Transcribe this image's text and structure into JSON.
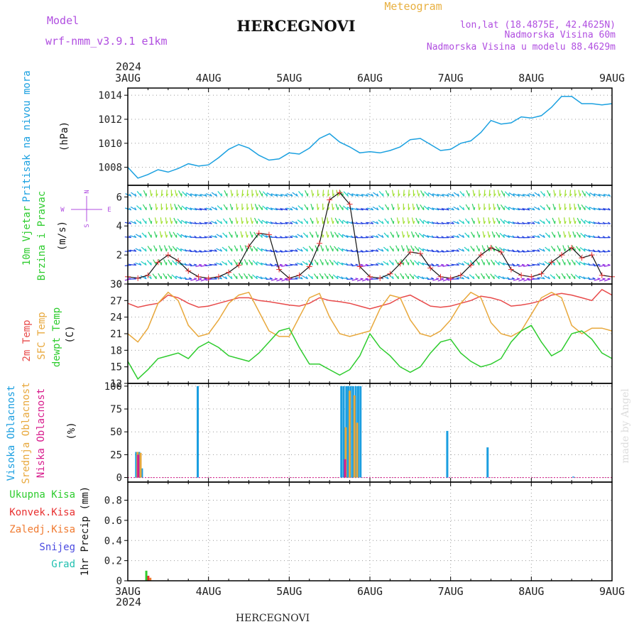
{
  "header": {
    "model_label": "Model",
    "model_name": "wrf-nmm_v3.9.1  e1km",
    "title": "HERCEGNOVI",
    "meteogram": "Meteogram",
    "lonlat": "lon,lat (18.4875E, 42.4625N)",
    "elevation": "Nadmorska Visina 60m",
    "model_elevation": "Nadmorska Visina u modelu 88.4629m",
    "footer_title": "HERCEGNOVI",
    "credit": "made by Angel"
  },
  "colors": {
    "pressure": "#1aa0e0",
    "temp2m": "#e84a4a",
    "sfc": "#e8a83c",
    "dew": "#2ecc2e",
    "high_cloud": "#1a9ee0",
    "mid_cloud": "#e8a83c",
    "low_cloud": "#d81b8c",
    "total_precip": "#2ecc2e",
    "conv_precip": "#e83030",
    "frz_precip": "#f07a30",
    "snow": "#4a4ae0",
    "hail": "#20c0b0",
    "wind_label": "#2ecc2e",
    "wind_compass": "#b04ee0",
    "model": "#b04ee0",
    "meteogram": "#e8b040"
  },
  "chart_data": {
    "x_axis": {
      "year_top": "2024",
      "year_bottom": "2024",
      "ticks": [
        "3AUG",
        "4AUG",
        "5AUG",
        "6AUG",
        "7AUG",
        "8AUG",
        "9AUG"
      ],
      "range_hours": [
        0,
        144
      ]
    },
    "panels": [
      {
        "id": "pressure",
        "type": "line",
        "ylabel": [
          "Pritisak na nivou mora",
          "(hPa)"
        ],
        "ylim": [
          1006.5,
          1014.6
        ],
        "yticks": [
          "1008",
          "1010",
          "1012",
          "1014"
        ],
        "ytick_values": [
          1008,
          1010,
          1012,
          1014
        ],
        "series": [
          {
            "name": "Pritisak na nivou mora",
            "x": [
              0,
              3,
              6,
              9,
              12,
              15,
              18,
              21,
              24,
              27,
              30,
              33,
              36,
              39,
              42,
              45,
              48,
              51,
              54,
              57,
              60,
              63,
              66,
              69,
              72,
              75,
              78,
              81,
              84,
              87,
              90,
              93,
              96,
              99,
              102,
              105,
              108,
              111,
              114,
              117,
              120,
              123,
              126,
              129,
              132,
              135,
              138,
              141,
              144
            ],
            "y": [
              1008.0,
              1007.1,
              1007.4,
              1007.8,
              1007.6,
              1007.9,
              1008.3,
              1008.1,
              1008.2,
              1008.8,
              1009.5,
              1009.9,
              1009.6,
              1009.0,
              1008.6,
              1008.7,
              1009.2,
              1009.1,
              1009.6,
              1010.4,
              1010.8,
              1010.1,
              1009.7,
              1009.2,
              1009.3,
              1009.2,
              1009.4,
              1009.7,
              1010.3,
              1010.4,
              1009.9,
              1009.4,
              1009.5,
              1010.0,
              1010.2,
              1010.9,
              1011.9,
              1011.6,
              1011.7,
              1012.2,
              1012.1,
              1012.3,
              1013.0,
              1013.9,
              1013.9,
              1013.3,
              1013.3,
              1013.2,
              1013.3
            ]
          }
        ]
      },
      {
        "id": "wind",
        "type": "line",
        "ylabel": [
          "10m Vjetar",
          "Brzina i Pravac",
          "(m/s)"
        ],
        "compass": {
          "n": "N",
          "s": "S",
          "w": "W",
          "e": "E"
        },
        "ylim": [
          0,
          6.8
        ],
        "yticks": [
          "0",
          "2",
          "4",
          "6"
        ],
        "ytick_values": [
          0,
          2,
          4,
          6
        ],
        "series": [
          {
            "name": "Brzina",
            "x": [
              0,
              3,
              6,
              9,
              12,
              15,
              18,
              21,
              24,
              27,
              30,
              33,
              36,
              39,
              42,
              45,
              48,
              51,
              54,
              57,
              60,
              63,
              66,
              69,
              72,
              75,
              78,
              81,
              84,
              87,
              90,
              93,
              96,
              99,
              102,
              105,
              108,
              111,
              114,
              117,
              120,
              123,
              126,
              129,
              132,
              135,
              138,
              141,
              144
            ],
            "y": [
              0.5,
              0.4,
              0.6,
              1.5,
              2.0,
              1.6,
              0.9,
              0.5,
              0.4,
              0.5,
              0.8,
              1.3,
              2.6,
              3.5,
              3.4,
              1.0,
              0.4,
              0.6,
              1.2,
              2.8,
              5.8,
              6.3,
              5.5,
              1.2,
              0.5,
              0.4,
              0.7,
              1.4,
              2.2,
              2.1,
              1.1,
              0.5,
              0.4,
              0.6,
              1.3,
              2.0,
              2.5,
              2.2,
              1.0,
              0.6,
              0.5,
              0.7,
              1.5,
              2.0,
              2.5,
              1.8,
              2.0,
              0.6,
              0.5
            ]
          }
        ]
      },
      {
        "id": "temperature",
        "type": "line",
        "ylabel": [
          "2m Temp",
          "SFC Temp",
          "dewpt Temp",
          "(C)"
        ],
        "ylim": [
          12,
          30
        ],
        "yticks": [
          "12",
          "15",
          "18",
          "21",
          "24",
          "27",
          "30"
        ],
        "ytick_values": [
          12,
          15,
          18,
          21,
          24,
          27,
          30
        ],
        "series": [
          {
            "name": "2m Temp",
            "x": [
              0,
              3,
              6,
              9,
              12,
              15,
              18,
              21,
              24,
              27,
              30,
              33,
              36,
              39,
              42,
              45,
              48,
              51,
              54,
              57,
              60,
              63,
              66,
              69,
              72,
              75,
              78,
              81,
              84,
              87,
              90,
              93,
              96,
              99,
              102,
              105,
              108,
              111,
              114,
              117,
              120,
              123,
              126,
              129,
              132,
              135,
              138,
              141,
              144
            ],
            "y": [
              26.5,
              25.8,
              26.2,
              26.5,
              28.0,
              27.5,
              26.5,
              25.8,
              26.0,
              26.5,
              27.0,
              27.5,
              27.5,
              27.0,
              26.8,
              26.5,
              26.2,
              26.0,
              26.5,
              27.5,
              27.0,
              26.8,
              26.5,
              26.0,
              25.5,
              26.0,
              26.5,
              27.5,
              28.0,
              27.0,
              26.0,
              25.8,
              26.0,
              26.5,
              27.0,
              27.8,
              27.5,
              27.0,
              26.0,
              26.2,
              26.5,
              27.0,
              28.0,
              28.3,
              28.0,
              27.5,
              27.0,
              29.0,
              28.0
            ]
          },
          {
            "name": "SFC Temp",
            "x": [
              0,
              3,
              6,
              9,
              12,
              15,
              18,
              21,
              24,
              27,
              30,
              33,
              36,
              39,
              42,
              45,
              48,
              51,
              54,
              57,
              60,
              63,
              66,
              69,
              72,
              75,
              78,
              81,
              84,
              87,
              90,
              93,
              96,
              99,
              102,
              105,
              108,
              111,
              114,
              117,
              120,
              123,
              126,
              129,
              132,
              135,
              138,
              141,
              144
            ],
            "y": [
              21.0,
              19.5,
              22.0,
              26.5,
              28.5,
              27.0,
              22.5,
              20.5,
              21.0,
              23.5,
              26.5,
              28.0,
              28.5,
              25.0,
              21.5,
              20.5,
              20.5,
              24.0,
              27.5,
              28.3,
              24.0,
              21.0,
              20.5,
              21.0,
              21.5,
              25.5,
              28.0,
              27.5,
              23.5,
              21.0,
              20.5,
              21.5,
              23.5,
              26.5,
              28.5,
              27.5,
              23.0,
              21.0,
              20.5,
              21.5,
              24.5,
              27.5,
              28.5,
              27.5,
              22.5,
              21.0,
              22.0,
              22.0,
              21.5
            ]
          },
          {
            "name": "dewpt Temp",
            "x": [
              0,
              3,
              6,
              9,
              12,
              15,
              18,
              21,
              24,
              27,
              30,
              33,
              36,
              39,
              42,
              45,
              48,
              51,
              54,
              57,
              60,
              63,
              66,
              69,
              72,
              75,
              78,
              81,
              84,
              87,
              90,
              93,
              96,
              99,
              102,
              105,
              108,
              111,
              114,
              117,
              120,
              123,
              126,
              129,
              132,
              135,
              138,
              141,
              144
            ],
            "y": [
              16.0,
              12.8,
              14.5,
              16.5,
              17.0,
              17.5,
              16.5,
              18.5,
              19.5,
              18.5,
              17.0,
              16.5,
              16.0,
              17.5,
              19.5,
              21.5,
              22.0,
              18.5,
              15.5,
              15.5,
              14.5,
              13.5,
              14.5,
              17.0,
              21.0,
              18.5,
              17.0,
              15.0,
              14.0,
              15.0,
              17.5,
              19.5,
              20.0,
              17.5,
              16.0,
              15.0,
              15.5,
              16.5,
              19.5,
              21.5,
              22.5,
              19.5,
              17.0,
              18.0,
              21.0,
              21.5,
              20.0,
              17.5,
              16.5
            ]
          }
        ]
      },
      {
        "id": "cloud",
        "type": "bar",
        "ylabel": [
          "Visoka Oblacnost",
          "Srednja Oblacnost",
          "Niska Oblacnost",
          "(%)"
        ],
        "ylim": [
          -5,
          103
        ],
        "yticks": [
          "0",
          "25",
          "50",
          "75",
          "100"
        ],
        "ytick_values": [
          0,
          25,
          50,
          75,
          100
        ],
        "series": [
          {
            "name": "Visoka Oblacnost",
            "x": [
              2.5,
              3.4,
              4.2,
              20.8,
              63.5,
              64.2,
              65.0,
              65.6,
              66.3,
              67.0,
              67.8,
              68.5,
              69.2,
              95.0,
              107.0,
              132.5
            ],
            "values": [
              28,
              28,
              10,
              100,
              100,
              100,
              100,
              100,
              100,
              100,
              100,
              100,
              100,
              51,
              33,
              1
            ]
          },
          {
            "name": "Srednja Oblacnost",
            "x": [
              2.9,
              3.8,
              64.8,
              66.0,
              67.4,
              68.2
            ],
            "values": [
              28,
              27,
              55,
              95,
              90,
              60
            ]
          },
          {
            "name": "Niska Oblacnost",
            "x": [
              3.1,
              64.6
            ],
            "values": [
              25,
              20
            ]
          }
        ]
      },
      {
        "id": "precip",
        "type": "bar",
        "ylabel": [
          "1hr Precip (mm)"
        ],
        "legend": [
          "Ukupna Kisa",
          "Konvek.Kisa",
          "Zaledj.Kisa",
          "Snijeg",
          "Grad"
        ],
        "ylim": [
          0,
          0.98
        ],
        "yticks": [
          "0",
          "0.2",
          "0.4",
          "0.6",
          "0.8"
        ],
        "ytick_values": [
          0,
          0.2,
          0.4,
          0.6,
          0.8
        ],
        "series": [
          {
            "name": "Ukupna Kisa",
            "x": [
              5.5
            ],
            "values": [
              0.1
            ]
          },
          {
            "name": "Konvek.Kisa",
            "x": [
              6.1
            ],
            "values": [
              0.05
            ]
          },
          {
            "name": "Zaledj.Kisa",
            "x": [
              6.7
            ],
            "values": [
              0.03
            ]
          }
        ]
      }
    ]
  }
}
